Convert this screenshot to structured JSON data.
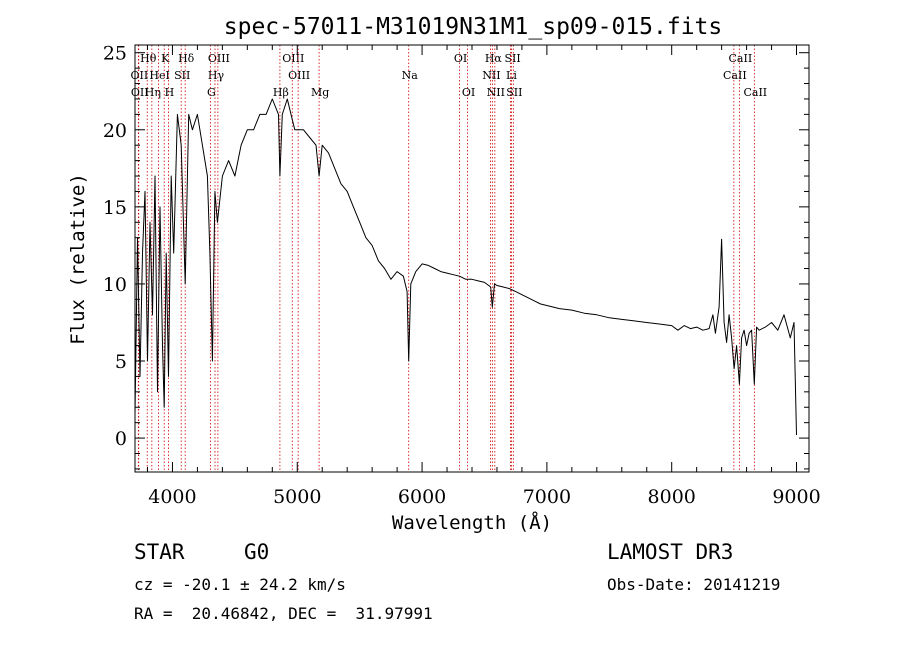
{
  "chart_data": {
    "type": "line",
    "title": "spec-57011-M31019N31M1_sp09-015.fits",
    "xlabel": "Wavelength (Å)",
    "ylabel": "Flux (relative)",
    "xlim": [
      3700,
      9100
    ],
    "ylim": [
      -2.2,
      25.5
    ],
    "xticks": [
      4000,
      5000,
      6000,
      7000,
      8000,
      9000
    ],
    "yticks": [
      0,
      5,
      10,
      15,
      20,
      25
    ],
    "line_color": "#000000",
    "marker_color": "#cc0000",
    "series": [
      {
        "name": "flux",
        "x": [
          3700,
          3720,
          3740,
          3760,
          3780,
          3800,
          3820,
          3840,
          3860,
          3880,
          3900,
          3920,
          3934,
          3950,
          3968,
          3990,
          4010,
          4040,
          4070,
          4102,
          4130,
          4160,
          4200,
          4240,
          4280,
          4300,
          4320,
          4340,
          4360,
          4400,
          4450,
          4500,
          4550,
          4600,
          4650,
          4700,
          4750,
          4800,
          4850,
          4861,
          4880,
          4920,
          4950,
          4980,
          5000,
          5050,
          5100,
          5150,
          5175,
          5200,
          5250,
          5300,
          5350,
          5400,
          5450,
          5500,
          5550,
          5600,
          5650,
          5700,
          5750,
          5800,
          5850,
          5880,
          5893,
          5910,
          5950,
          6000,
          6050,
          6100,
          6150,
          6200,
          6250,
          6300,
          6350,
          6400,
          6450,
          6500,
          6550,
          6563,
          6580,
          6600,
          6650,
          6700,
          6750,
          6800,
          6850,
          6900,
          6950,
          7000,
          7100,
          7200,
          7300,
          7400,
          7500,
          7600,
          7700,
          7800,
          7900,
          8000,
          8050,
          8100,
          8150,
          8200,
          8250,
          8300,
          8330,
          8350,
          8380,
          8400,
          8420,
          8440,
          8460,
          8480,
          8500,
          8520,
          8542,
          8560,
          8580,
          8600,
          8620,
          8640,
          8662,
          8680,
          8700,
          8750,
          8800,
          8850,
          8900,
          8950,
          8980,
          9000
        ],
        "y": [
          1.5,
          13,
          4,
          12,
          16,
          5,
          14,
          8,
          17,
          3,
          15,
          6,
          2,
          12,
          4,
          17,
          12,
          21,
          19,
          10,
          21,
          20,
          21,
          19,
          17,
          12,
          5,
          16,
          14,
          17,
          18,
          17,
          19,
          20,
          20,
          21,
          21,
          22,
          21,
          17,
          21,
          22,
          21,
          20,
          20,
          20,
          19.5,
          19,
          17,
          19,
          18.5,
          17.5,
          16.5,
          16,
          15,
          14,
          13,
          12.5,
          11.5,
          11,
          10.3,
          10.8,
          10.5,
          9.5,
          5,
          10,
          10.8,
          11.3,
          11.2,
          11,
          10.8,
          10.7,
          10.6,
          10.5,
          10.3,
          10.3,
          10.2,
          10.1,
          9.8,
          8.5,
          10,
          9.9,
          9.8,
          9.7,
          9.5,
          9.3,
          9.1,
          8.9,
          8.7,
          8.6,
          8.4,
          8.3,
          8.1,
          8.0,
          7.8,
          7.7,
          7.6,
          7.5,
          7.4,
          7.3,
          7.0,
          7.3,
          7.1,
          7.2,
          7.0,
          7.1,
          8.0,
          6.8,
          8.5,
          12.9,
          7.5,
          6.2,
          8.0,
          6.5,
          4.5,
          6.0,
          3.5,
          6.5,
          7.0,
          6.0,
          6.8,
          7.0,
          3.5,
          7.2,
          7.0,
          7.2,
          7.5,
          7.0,
          8.0,
          6.5,
          7.5,
          0.2
        ]
      }
    ],
    "line_markers": [
      {
        "label": "Hθ",
        "wavelength": 3798,
        "row": 0
      },
      {
        "label": "OII",
        "wavelength": 3727,
        "row": 1
      },
      {
        "label": "OII",
        "wavelength": 3730,
        "row": 2
      },
      {
        "label": "Hη",
        "wavelength": 3835,
        "row": 2
      },
      {
        "label": "HeI",
        "wavelength": 3889,
        "row": 1
      },
      {
        "label": "K",
        "wavelength": 3934,
        "row": 0
      },
      {
        "label": "SII",
        "wavelength": 4070,
        "row": 1
      },
      {
        "label": "H",
        "wavelength": 3968,
        "row": 2
      },
      {
        "label": "Hδ",
        "wavelength": 4102,
        "row": 0
      },
      {
        "label": "OIII",
        "wavelength": 4364,
        "row": 0
      },
      {
        "label": "Hγ",
        "wavelength": 4341,
        "row": 1
      },
      {
        "label": "G",
        "wavelength": 4304,
        "row": 2
      },
      {
        "label": "Hβ",
        "wavelength": 4861,
        "row": 2
      },
      {
        "label": "OIII",
        "wavelength": 4960,
        "row": 0
      },
      {
        "label": "OIII",
        "wavelength": 5007,
        "row": 1
      },
      {
        "label": "Mg",
        "wavelength": 5175,
        "row": 2
      },
      {
        "label": "Na",
        "wavelength": 5893,
        "row": 1
      },
      {
        "label": "OI",
        "wavelength": 6300,
        "row": 0
      },
      {
        "label": "OI",
        "wavelength": 6364,
        "row": 2
      },
      {
        "label": "Hα",
        "wavelength": 6563,
        "row": 0
      },
      {
        "label": "NII",
        "wavelength": 6548,
        "row": 1
      },
      {
        "label": "NII",
        "wavelength": 6583,
        "row": 2
      },
      {
        "label": "SII",
        "wavelength": 6717,
        "row": 0
      },
      {
        "label": "Li",
        "wavelength": 6708,
        "row": 1
      },
      {
        "label": "SII",
        "wavelength": 6731,
        "row": 2
      },
      {
        "label": "CaII",
        "wavelength": 8542,
        "row": 0
      },
      {
        "label": "CaII",
        "wavelength": 8498,
        "row": 1
      },
      {
        "label": "CaII",
        "wavelength": 8662,
        "row": 2
      }
    ]
  },
  "info": {
    "class_label": "STAR",
    "subclass": "G0",
    "survey": "LAMOST DR3",
    "redshift_line": "cz = -20.1 ± 24.2 km/s",
    "obs_date_line": "Obs-Date: 20141219",
    "coords_line": "RA =  20.46842, DEC =  31.97991"
  }
}
